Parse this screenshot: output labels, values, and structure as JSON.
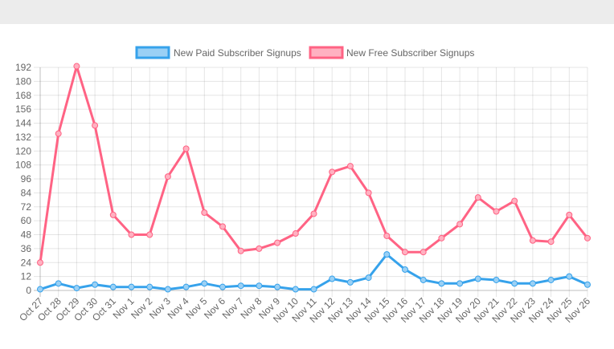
{
  "chart_data": {
    "type": "line",
    "title": "",
    "xlabel": "",
    "ylabel": "",
    "legend_position": "top-center",
    "grid": true,
    "ylim": [
      0,
      192
    ],
    "y_tick_step": 12,
    "categories": [
      "Oct 27",
      "Oct 28",
      "Oct 29",
      "Oct 30",
      "Oct 31",
      "Nov 1",
      "Nov 2",
      "Nov 3",
      "Nov 4",
      "Nov 5",
      "Nov 6",
      "Nov 7",
      "Nov 8",
      "Nov 9",
      "Nov 10",
      "Nov 11",
      "Nov 12",
      "Nov 13",
      "Nov 14",
      "Nov 15",
      "Nov 16",
      "Nov 17",
      "Nov 18",
      "Nov 19",
      "Nov 20",
      "Nov 21",
      "Nov 22",
      "Nov 23",
      "Nov 24",
      "Nov 25",
      "Nov 26"
    ],
    "series": [
      {
        "name": "New Paid Subscriber Signups",
        "color": "#36a2eb",
        "fill": "#9ad0f5",
        "values": [
          1,
          6,
          2,
          5,
          3,
          3,
          3,
          1,
          3,
          6,
          3,
          4,
          4,
          3,
          1,
          1,
          10,
          7,
          11,
          31,
          18,
          9,
          6,
          6,
          10,
          9,
          6,
          6,
          9,
          12,
          5
        ]
      },
      {
        "name": "New Free Subscriber Signups",
        "color": "#ff6384",
        "fill": "#ffb1c1",
        "values": [
          24,
          135,
          193,
          142,
          65,
          48,
          48,
          98,
          122,
          67,
          55,
          34,
          36,
          41,
          49,
          66,
          102,
          107,
          84,
          47,
          33,
          33,
          45,
          57,
          80,
          68,
          77,
          43,
          42,
          65,
          45
        ]
      }
    ]
  }
}
